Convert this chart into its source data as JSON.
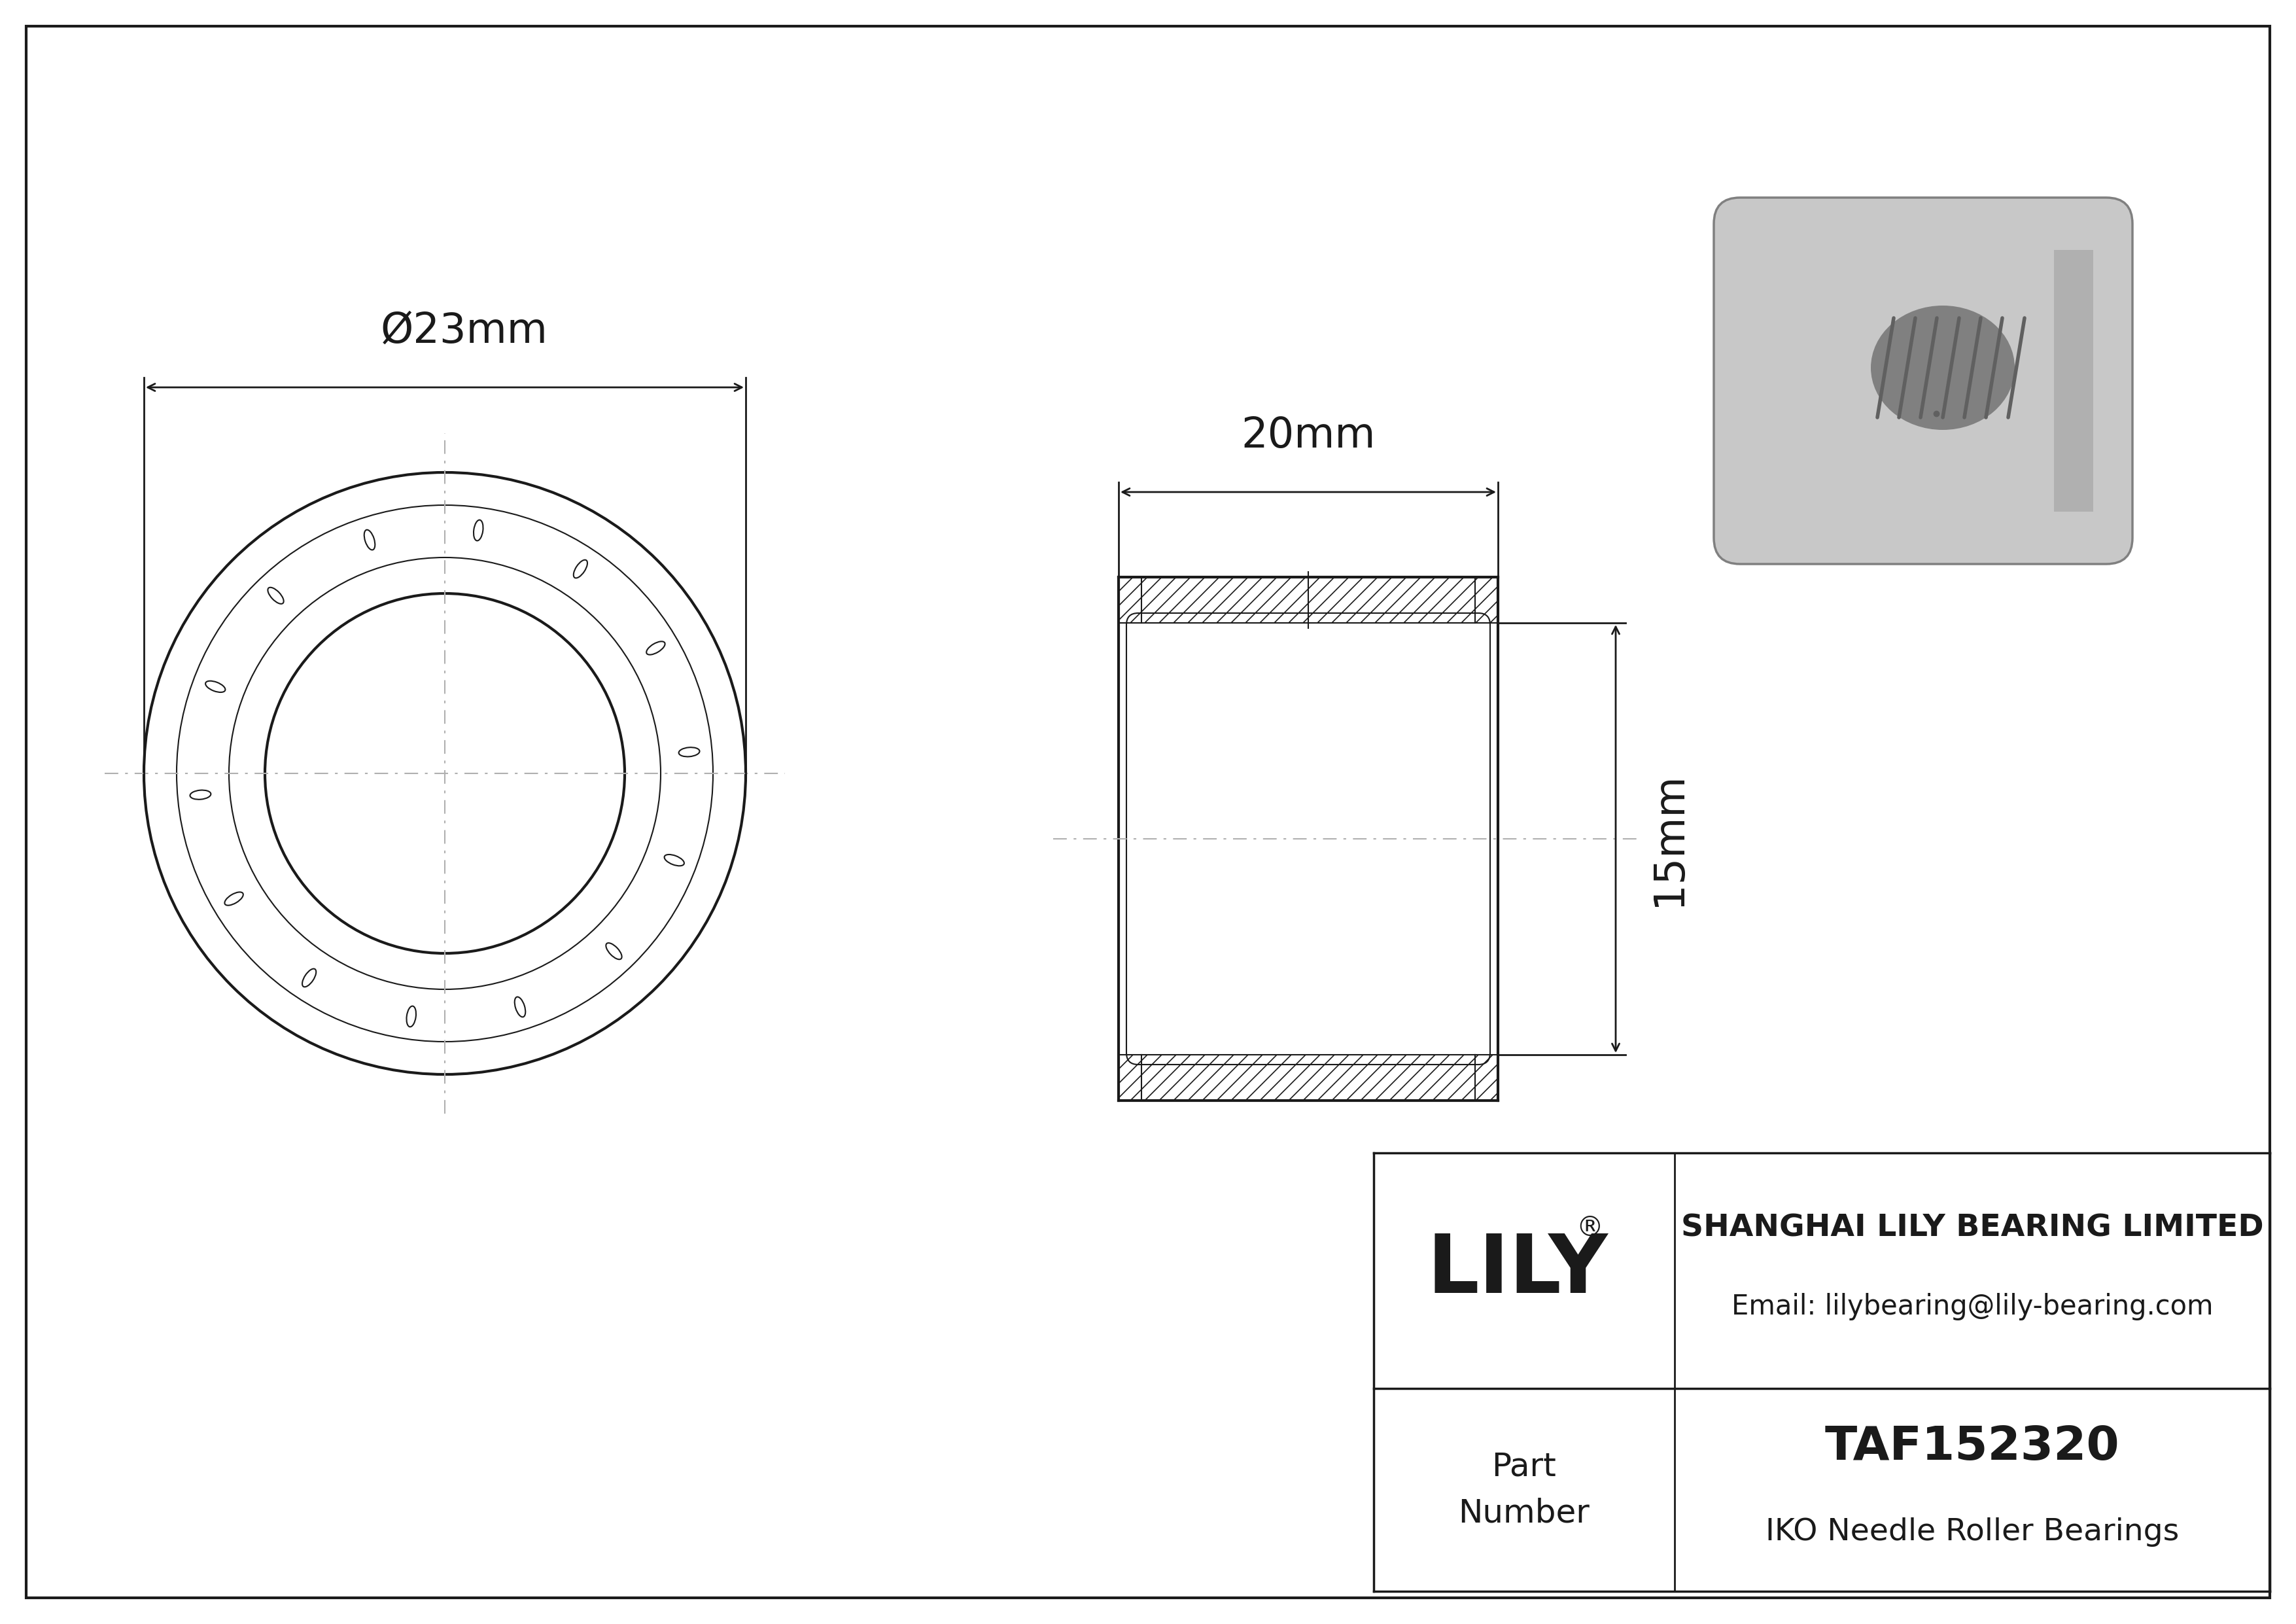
{
  "bg_color": "#ffffff",
  "line_color": "#1a1a1a",
  "center_line_color": "#b0b0b0",
  "gray_light": "#c8c8c8",
  "gray_mid": "#a0a0a0",
  "gray_dark": "#808080",
  "gray_darker": "#606060",
  "company": "SHANGHAI LILY BEARING LIMITED",
  "email": "Email: lilybearing@lily-bearing.com",
  "part_label": "Part\nNumber",
  "part_number": "TAF152320",
  "bearing_type": "IKO Needle Roller Bearings",
  "dim_width": "20mm",
  "dim_diameter": "Ø23mm",
  "dim_height": "15mm",
  "lw_main": 3.0,
  "lw_thin": 1.5,
  "lw_dim": 2.0,
  "lw_hatch": 1.2
}
